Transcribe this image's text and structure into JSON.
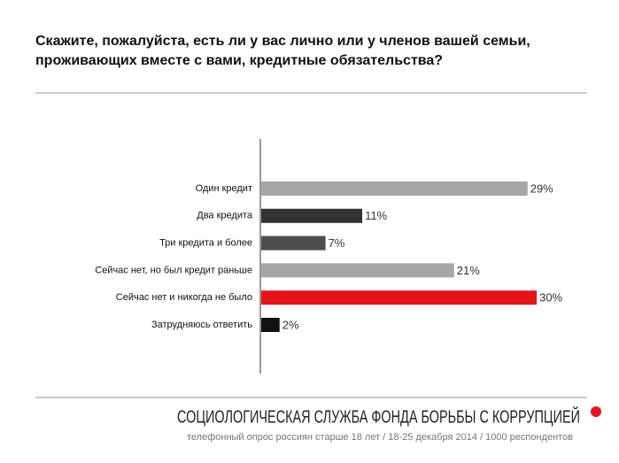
{
  "chart_data": {
    "type": "bar",
    "orientation": "horizontal",
    "title": "Скажите, пожалуйста, есть ли у вас лично или у членов вашей семьи, проживающих вместе с вами, кредитные обязательства?",
    "categories": [
      "Один кредит",
      "Два кредита",
      "Три кредита и более",
      "Сейчас нет, но был кредит раньше",
      "Сейчас нет и никогда не было",
      "Затрудняюсь ответить"
    ],
    "values": [
      29,
      11,
      7,
      21,
      30,
      2
    ],
    "value_labels": [
      "29%",
      "11%",
      "7%",
      "21%",
      "30%",
      "2%"
    ],
    "colors": [
      "#a6a6a6",
      "#333333",
      "#4d4d4d",
      "#a6a6a6",
      "#e5141b",
      "#111111"
    ],
    "footer_title": "СОЦИОЛОГИЧЕСКАЯ СЛУЖБА ФОНДА БОРЬБЫ С КОРРУПЦИЕЙ",
    "footer_note": "телефонный опрос россиян старше 18 лет / 18-25 декабря 2014 / 1000 респондентов"
  }
}
